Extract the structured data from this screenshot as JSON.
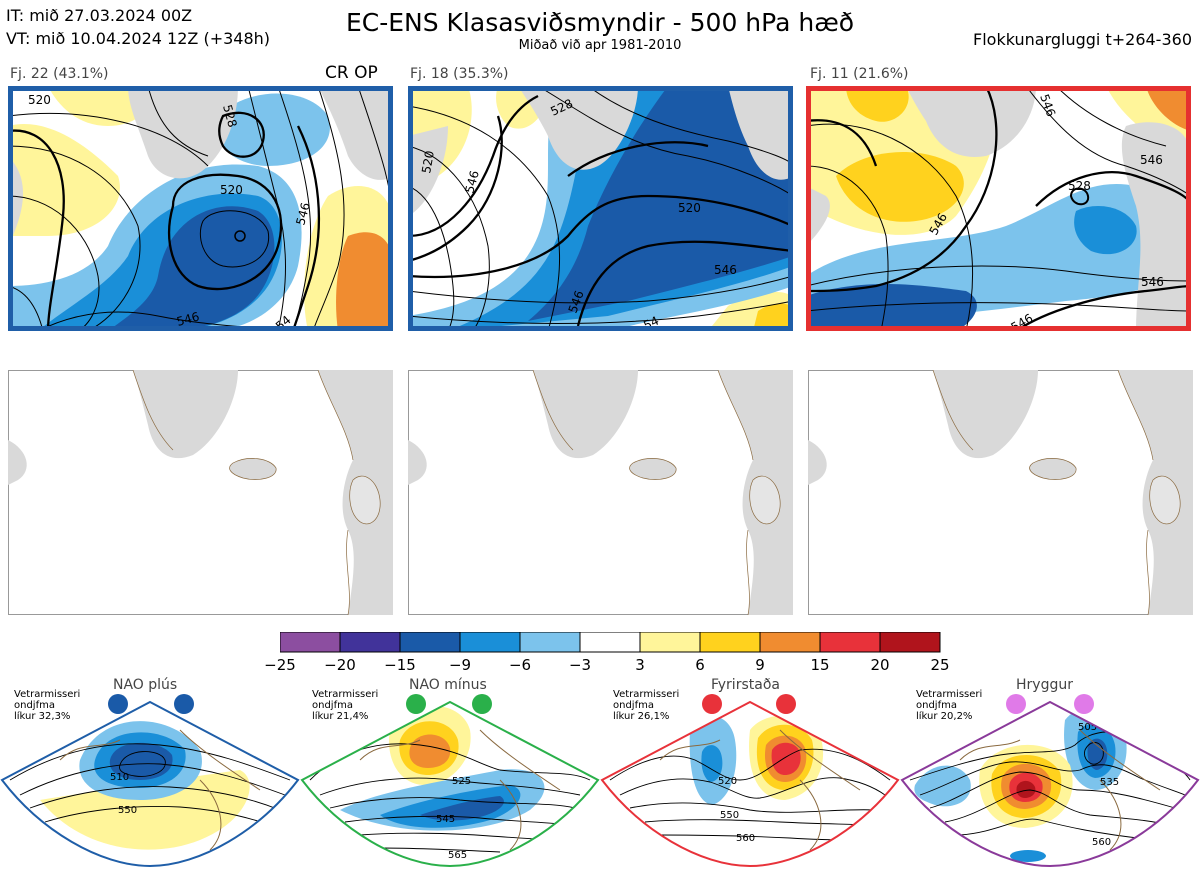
{
  "header": {
    "it_line": "IT: mið 27.03.2024 00Z",
    "vt_line": "VT: mið 10.04.2024 12Z  (+348h)",
    "title": "EC-ENS Klasasviðsmyndir - 500 hPa hæð",
    "subtitle": "Miðað við apr 1981-2010",
    "window": "Flokkunargluggi t+264-360"
  },
  "clusters": [
    {
      "label": "Fj. 22 (43.1%)",
      "border_color": "#1f5ea8",
      "tag": "CR OP",
      "contours": [
        "520",
        "528",
        "520",
        "546",
        "546",
        "54"
      ]
    },
    {
      "label": "Fj. 18 (35.3%)",
      "border_color": "#1f5ea8",
      "contours": [
        "528",
        "520",
        "546",
        "546",
        "520",
        "546",
        "54"
      ]
    },
    {
      "label": "Fj. 11 (21.6%)",
      "border_color": "#e53030",
      "contours": [
        "528",
        "546",
        "546",
        "546",
        "546",
        "546"
      ]
    }
  ],
  "colorbar": {
    "ticks": [
      "−25",
      "−20",
      "−15",
      "−9",
      "−6",
      "−3",
      "3",
      "6",
      "9",
      "15",
      "20",
      "25"
    ],
    "colors": [
      "#8c4ea0",
      "#41339a",
      "#1a5aa8",
      "#1a8fd8",
      "#7cc3ec",
      "#ffffff",
      "#fff59a",
      "#ffd21e",
      "#f08c30",
      "#e8323a",
      "#b0141c"
    ]
  },
  "regimes": [
    {
      "title": "NAO plús",
      "note_1": "Vetrarmisseri",
      "note_2": "ondjfma",
      "note_3": "líkur 32,3%",
      "dot_color": "#1a5aa8",
      "frame_color": "#1f5ea8",
      "contours": [
        "510",
        "550"
      ]
    },
    {
      "title": "NAO mínus",
      "note_1": "Vetrarmisseri",
      "note_2": "ondjfma",
      "note_3": "líkur 21,4%",
      "dot_color": "#2ab04a",
      "frame_color": "#2ab04a",
      "contours": [
        "525",
        "545",
        "565"
      ]
    },
    {
      "title": "Fyrirstaða",
      "note_1": "Vetrarmisseri",
      "note_2": "ondjfma",
      "note_3": "líkur 26,1%",
      "dot_color": "#e8323a",
      "frame_color": "#e8323a",
      "contours": [
        "520",
        "550",
        "560"
      ]
    },
    {
      "title": "Hryggur",
      "note_1": "Vetrarmisseri",
      "note_2": "ondjfma",
      "note_3": "líkur 20,2%",
      "dot_color": "#e07ae8",
      "frame_color": "#8a3a9a",
      "contours": [
        "505",
        "535",
        "560"
      ]
    }
  ]
}
